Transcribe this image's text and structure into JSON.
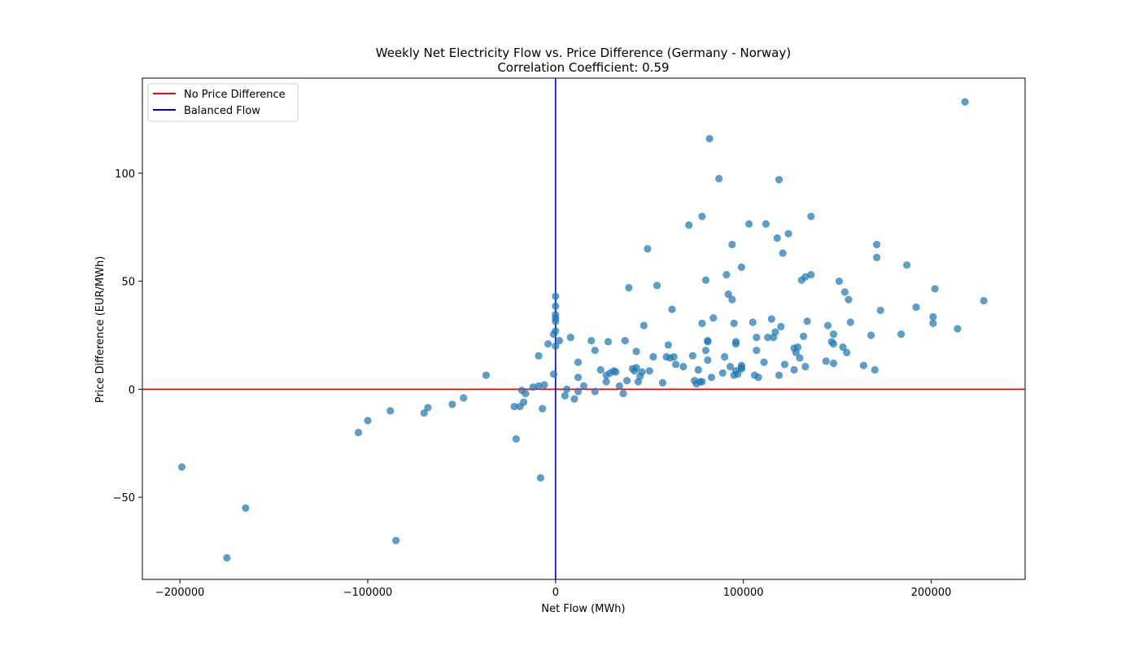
{
  "chart_data": {
    "type": "scatter",
    "title": "Weekly Net Electricity Flow vs. Price Difference (Germany - Norway)",
    "subtitle": "Correlation Coefficient: 0.59",
    "xlabel": "Net Flow (MWh)",
    "ylabel": "Price Difference (EUR/MWh)",
    "xlim": [
      -220000,
      250000
    ],
    "ylim": [
      -88,
      144
    ],
    "xticks": [
      -200000,
      -100000,
      0,
      100000,
      200000
    ],
    "xtick_labels": [
      "−200000",
      "−100000",
      "0",
      "100000",
      "200000"
    ],
    "yticks": [
      -50,
      0,
      50,
      100
    ],
    "ytick_labels": [
      "−50",
      "0",
      "50",
      "100"
    ],
    "grid": false,
    "legend_position": "upper-left",
    "colors": {
      "points": "#1f77b4",
      "zero_price_line": "#ff0000",
      "zero_flow_line": "#0000cc"
    },
    "reference_lines": [
      {
        "name": "No Price Difference",
        "orientation": "horizontal",
        "value": 0,
        "color": "#ff0000"
      },
      {
        "name": "Balanced Flow",
        "orientation": "vertical",
        "value": 0,
        "color": "#0000cc"
      }
    ],
    "series": [
      {
        "points": [
          [
            -199000,
            -36
          ],
          [
            -175000,
            -78
          ],
          [
            -165000,
            -55
          ],
          [
            -105000,
            -20
          ],
          [
            -100000,
            -14.5
          ],
          [
            -88000,
            -10
          ],
          [
            -85000,
            -70
          ],
          [
            -70000,
            -11
          ],
          [
            -68000,
            -8.5
          ],
          [
            -55000,
            -7
          ],
          [
            -49000,
            -4
          ],
          [
            -37000,
            6.5
          ],
          [
            -22000,
            -8
          ],
          [
            -21000,
            -23
          ],
          [
            -19000,
            -8
          ],
          [
            -18000,
            -0.5
          ],
          [
            -17000,
            -6
          ],
          [
            -16000,
            -2
          ],
          [
            -12000,
            1
          ],
          [
            -9000,
            15.5
          ],
          [
            -9000,
            1.5
          ],
          [
            -8000,
            -41
          ],
          [
            -7000,
            -9
          ],
          [
            -6000,
            2
          ],
          [
            -4000,
            21
          ],
          [
            -1000,
            7
          ],
          [
            -1000,
            25.5
          ],
          [
            0,
            20
          ],
          [
            0,
            27
          ],
          [
            0,
            31.5
          ],
          [
            0,
            33
          ],
          [
            0,
            34.5
          ],
          [
            0,
            38.5
          ],
          [
            0,
            43
          ],
          [
            2000,
            22.5
          ],
          [
            5000,
            -3
          ],
          [
            6000,
            0
          ],
          [
            8000,
            24
          ],
          [
            10000,
            -4.5
          ],
          [
            12000,
            5.5
          ],
          [
            12000,
            -1
          ],
          [
            12000,
            12.5
          ],
          [
            15000,
            1.5
          ],
          [
            19000,
            22.5
          ],
          [
            21000,
            18
          ],
          [
            21000,
            -1
          ],
          [
            24000,
            9
          ],
          [
            27000,
            3.5
          ],
          [
            27000,
            6.5
          ],
          [
            28000,
            22
          ],
          [
            29000,
            7.5
          ],
          [
            31000,
            8.5
          ],
          [
            32000,
            8
          ],
          [
            34000,
            1.5
          ],
          [
            36000,
            -2
          ],
          [
            37000,
            22.5
          ],
          [
            38000,
            4
          ],
          [
            39000,
            47
          ],
          [
            41000,
            9.5
          ],
          [
            42000,
            8.5
          ],
          [
            43000,
            17.5
          ],
          [
            43000,
            10
          ],
          [
            44000,
            3.5
          ],
          [
            45000,
            6
          ],
          [
            46000,
            8
          ],
          [
            47000,
            29.5
          ],
          [
            49000,
            65
          ],
          [
            50000,
            8.5
          ],
          [
            52000,
            15
          ],
          [
            54000,
            48
          ],
          [
            57000,
            3
          ],
          [
            59000,
            15
          ],
          [
            60000,
            20.5
          ],
          [
            61000,
            14.5
          ],
          [
            62000,
            37
          ],
          [
            63000,
            15
          ],
          [
            64000,
            11.5
          ],
          [
            68000,
            10.5
          ],
          [
            71000,
            76
          ],
          [
            73000,
            15.5
          ],
          [
            74000,
            4
          ],
          [
            75000,
            2.5
          ],
          [
            76000,
            9
          ],
          [
            77000,
            3.5
          ],
          [
            78000,
            30.5
          ],
          [
            78000,
            80
          ],
          [
            78000,
            3.5
          ],
          [
            80000,
            18
          ],
          [
            80000,
            50.5
          ],
          [
            81000,
            22.5
          ],
          [
            81000,
            13.5
          ],
          [
            81000,
            22
          ],
          [
            82000,
            116
          ],
          [
            83000,
            5.5
          ],
          [
            84000,
            33
          ],
          [
            87000,
            97.5
          ],
          [
            89000,
            7.5
          ],
          [
            90000,
            15
          ],
          [
            91000,
            53
          ],
          [
            92000,
            44
          ],
          [
            93000,
            10.5
          ],
          [
            94000,
            41.5
          ],
          [
            94000,
            67
          ],
          [
            95000,
            30.5
          ],
          [
            95000,
            6.5
          ],
          [
            96000,
            8.5
          ],
          [
            96000,
            21
          ],
          [
            96000,
            22
          ],
          [
            97000,
            7
          ],
          [
            99000,
            56.5
          ],
          [
            99000,
            9.5
          ],
          [
            99000,
            11
          ],
          [
            99000,
            10
          ],
          [
            103000,
            76.5
          ],
          [
            105000,
            31
          ],
          [
            106000,
            6.5
          ],
          [
            107000,
            24
          ],
          [
            107000,
            18
          ],
          [
            108000,
            5.5
          ],
          [
            111000,
            12.5
          ],
          [
            112000,
            76.5
          ],
          [
            113000,
            24
          ],
          [
            115000,
            32.5
          ],
          [
            116000,
            24
          ],
          [
            117000,
            26.5
          ],
          [
            118000,
            70
          ],
          [
            119000,
            97
          ],
          [
            119000,
            6.5
          ],
          [
            120000,
            29
          ],
          [
            121000,
            63
          ],
          [
            122000,
            11.5
          ],
          [
            124000,
            72
          ],
          [
            127000,
            9
          ],
          [
            127000,
            19
          ],
          [
            128000,
            17
          ],
          [
            129000,
            19.5
          ],
          [
            130000,
            14.5
          ],
          [
            131000,
            50.5
          ],
          [
            132000,
            24.5
          ],
          [
            133000,
            10.5
          ],
          [
            133000,
            52
          ],
          [
            134000,
            31.5
          ],
          [
            136000,
            53
          ],
          [
            136000,
            80
          ],
          [
            144000,
            13
          ],
          [
            145000,
            29.5
          ],
          [
            147000,
            22
          ],
          [
            148000,
            21
          ],
          [
            148000,
            25.5
          ],
          [
            148000,
            12
          ],
          [
            151000,
            50
          ],
          [
            153000,
            19.5
          ],
          [
            154000,
            45
          ],
          [
            155000,
            17
          ],
          [
            156000,
            41.5
          ],
          [
            157000,
            31
          ],
          [
            164000,
            11
          ],
          [
            168000,
            25
          ],
          [
            170000,
            9
          ],
          [
            171000,
            61
          ],
          [
            171000,
            67
          ],
          [
            173000,
            36.5
          ],
          [
            184000,
            25.5
          ],
          [
            187000,
            57.5
          ],
          [
            192000,
            38
          ],
          [
            201000,
            33.5
          ],
          [
            201000,
            30.5
          ],
          [
            202000,
            46.5
          ],
          [
            214000,
            28
          ],
          [
            218000,
            133
          ],
          [
            228000,
            41
          ]
        ]
      }
    ]
  }
}
